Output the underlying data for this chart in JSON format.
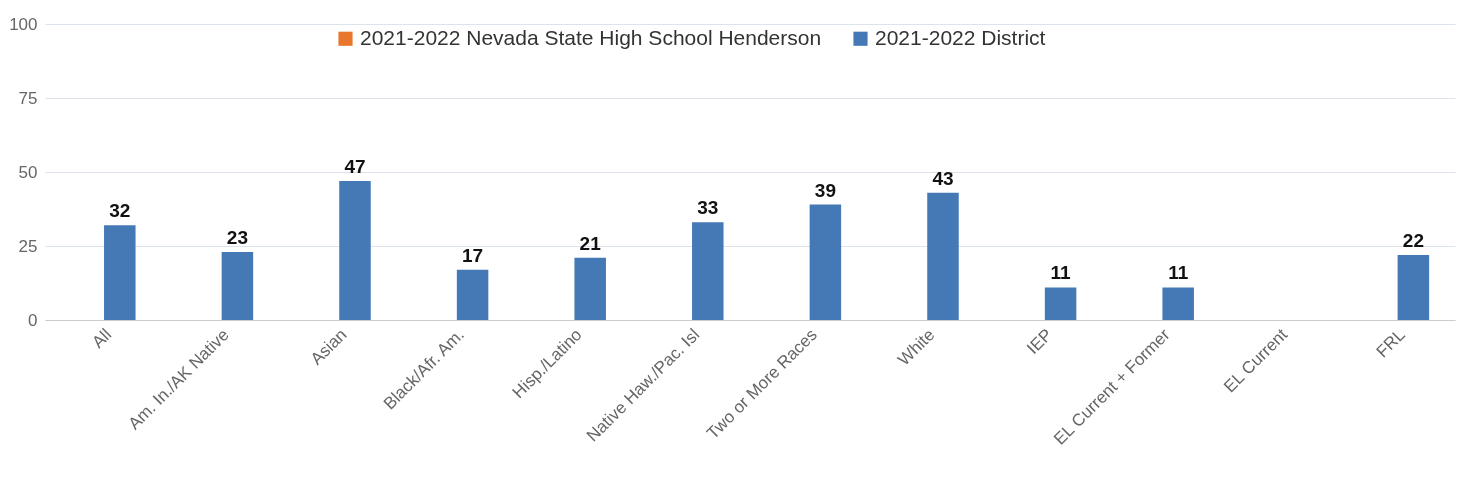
{
  "chart_data": {
    "type": "bar",
    "categories": [
      "All",
      "Am. In./AK Native",
      "Asian",
      "Black/Afr. Am.",
      "Hisp./Latino",
      "Native Haw./Pac. Isl",
      "Two or More Races",
      "White",
      "IEP",
      "EL Current + Former",
      "EL Current",
      "FRL"
    ],
    "series": [
      {
        "name": "2021-2022 Nevada State High School Henderson",
        "color": "#e8762d",
        "values": [
          null,
          null,
          null,
          null,
          null,
          null,
          null,
          null,
          null,
          null,
          null,
          null
        ]
      },
      {
        "name": "2021-2022 District",
        "color": "#4479b5",
        "values": [
          32,
          23,
          47,
          17,
          21,
          33,
          39,
          43,
          11,
          11,
          null,
          22
        ]
      }
    ],
    "ylim": [
      0,
      100
    ],
    "yticks": [
      0,
      25,
      50,
      75,
      100
    ],
    "grid": "y",
    "legend": "top",
    "data_labels": true
  }
}
